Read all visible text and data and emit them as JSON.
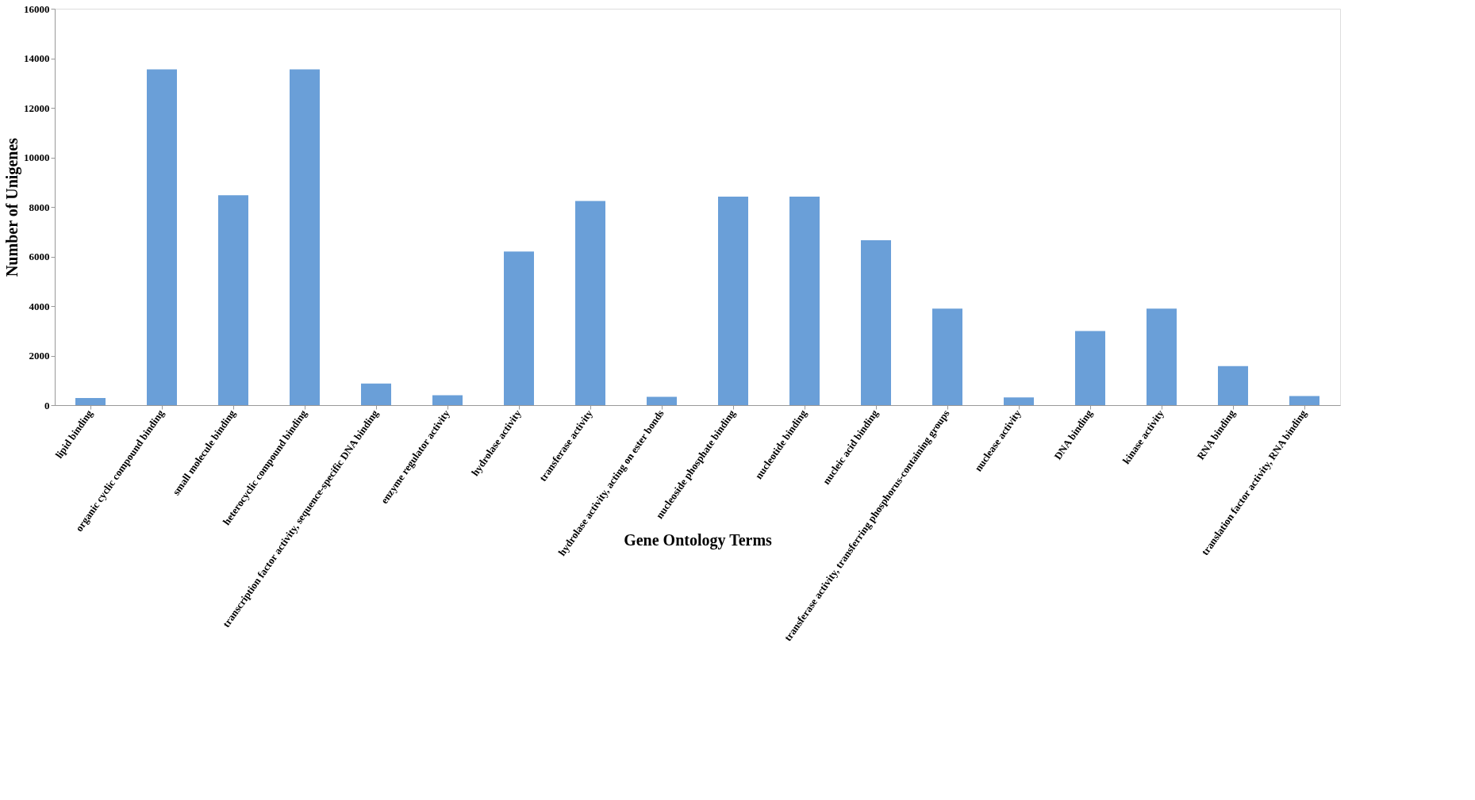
{
  "chart_data": {
    "type": "bar",
    "xlabel": "Gene Ontology Terms",
    "ylabel": "Number of Unigenes",
    "categories": [
      "lipid binding",
      "organic cyclic compound binding",
      "small molecule binding",
      "heterocyclic compound binding",
      "transcription factor activity, sequence-specific DNA binding",
      "enzyme regulator activity",
      "hydrolase activity",
      "transferase activity",
      "hydrolase activity, acting on ester bonds",
      "nucleoside phosphate binding",
      "nucleotide binding",
      "nucleic acid binding",
      "transferase activity, transferring phosphorus-containing groups",
      "nuclease activity",
      "DNA binding",
      "kinase activity",
      "RNA binding",
      "translation factor activity, RNA binding"
    ],
    "values": [
      290,
      13550,
      8470,
      13550,
      870,
      400,
      6200,
      8240,
      340,
      8420,
      8420,
      6660,
      3900,
      310,
      2990,
      3900,
      1580,
      370
    ],
    "color": "#6a9fd8",
    "ylim": [
      0,
      16000
    ],
    "yticks": [
      0,
      2000,
      4000,
      6000,
      8000,
      10000,
      12000,
      14000,
      16000
    ],
    "grid": false
  }
}
